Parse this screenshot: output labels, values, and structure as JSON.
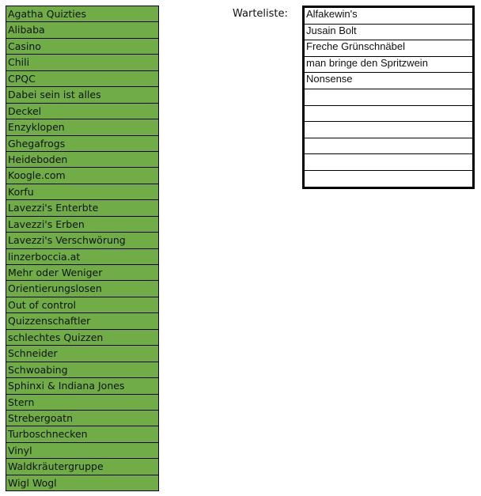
{
  "teams": [
    "Agatha Quizties",
    "Alibaba",
    "Casino",
    "Chili",
    "CPQC",
    "Dabei sein ist alles",
    "Deckel",
    "Enzyklopen",
    "Ghegafrogs",
    "Heideboden",
    "Koogle.com",
    "Korfu",
    "Lavezzi's Enterbte",
    "Lavezzi's Erben",
    "Lavezzi's Verschwörung",
    "linzerboccia.at",
    "Mehr oder Weniger",
    "Orientierungslosen",
    "Out of control",
    "Quizzenschaftler",
    "schlechtes Quizzen",
    "Schneider",
    "Schwoabing",
    "Sphinxi & Indiana Jones",
    "Stern",
    "Strebergoatn",
    "Turboschnecken",
    "Vinyl",
    "Waldkräutergruppe",
    "Wigl Wogl"
  ],
  "waitlist": {
    "label": "Warteliste:",
    "entries": [
      "Alfakewin's",
      "Jusain Bolt",
      "Freche Grünschnäbel",
      "man bringe den Spritzwein",
      "Nonsense",
      "",
      "",
      "",
      "",
      "",
      ""
    ]
  },
  "colors": {
    "team_fill": "#70ad47"
  }
}
